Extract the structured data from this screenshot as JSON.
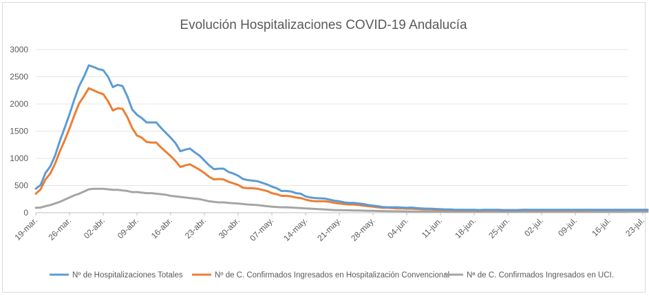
{
  "chart_data": {
    "type": "line",
    "title": "Evolución Hospitalizaciones COVID-19 Andalucía",
    "xlabel": "",
    "ylabel": "",
    "ylim": [
      0,
      3000
    ],
    "yticks": [
      0,
      500,
      1000,
      1500,
      2000,
      2500,
      3000
    ],
    "grid": "horizontal",
    "legend_position": "bottom",
    "x_start": "19-mar.",
    "x_tick_labels": [
      "19-mar.",
      "26-mar.",
      "02-abr.",
      "09-abr.",
      "16-abr.",
      "23-abr.",
      "30-abr.",
      "07-may.",
      "14-may.",
      "21-may.",
      "28-may.",
      "04-jun.",
      "11-jun.",
      "18-jun.",
      "25-jun.",
      "02-jul.",
      "09-jul.",
      "16-jul.",
      "23-jul."
    ],
    "series": [
      {
        "name": "Nº de Hospitalizaciones Totales",
        "color": "#5b9bd5",
        "values": [
          440,
          510,
          730,
          850,
          1050,
          1320,
          1560,
          1810,
          2080,
          2330,
          2500,
          2710,
          2680,
          2640,
          2620,
          2500,
          2310,
          2350,
          2330,
          2140,
          1900,
          1800,
          1740,
          1660,
          1660,
          1660,
          1560,
          1470,
          1380,
          1280,
          1130,
          1160,
          1180,
          1110,
          1050,
          960,
          870,
          800,
          810,
          810,
          750,
          720,
          680,
          620,
          600,
          590,
          580,
          550,
          520,
          480,
          450,
          400,
          400,
          390,
          360,
          350,
          300,
          280,
          270,
          265,
          260,
          240,
          220,
          210,
          190,
          180,
          180,
          170,
          160,
          140,
          130,
          120,
          105,
          100,
          100,
          100,
          95,
          90,
          95,
          85,
          80,
          75,
          75,
          70,
          65,
          60,
          60,
          55,
          55,
          55,
          55,
          55,
          50,
          55,
          55,
          55,
          55,
          50,
          50,
          50,
          50,
          55,
          55,
          55,
          55,
          55,
          55,
          55,
          55,
          55,
          55,
          55,
          55,
          55,
          55,
          55,
          55,
          55,
          55,
          55,
          55,
          55,
          55,
          55,
          55,
          55,
          55,
          55
        ]
      },
      {
        "name": "Nº de C. Confirmados Ingresados en Hospitalización Convencional",
        "color": "#ed7d31",
        "values": [
          350,
          430,
          610,
          720,
          900,
          1130,
          1330,
          1550,
          1790,
          2010,
          2140,
          2290,
          2250,
          2210,
          2180,
          2050,
          1880,
          1920,
          1910,
          1760,
          1560,
          1420,
          1380,
          1300,
          1290,
          1290,
          1200,
          1120,
          1040,
          950,
          840,
          870,
          890,
          840,
          790,
          730,
          660,
          610,
          620,
          610,
          570,
          540,
          510,
          460,
          450,
          450,
          440,
          420,
          400,
          360,
          340,
          310,
          310,
          300,
          280,
          270,
          240,
          220,
          210,
          210,
          210,
          200,
          180,
          170,
          160,
          150,
          150,
          140,
          130,
          120,
          110,
          100,
          90,
          90,
          85,
          80,
          80,
          75,
          75,
          70,
          65,
          60,
          60,
          55,
          55,
          50,
          50,
          45,
          45,
          45,
          45,
          45,
          40,
          45,
          45,
          45,
          45,
          40,
          40,
          40,
          40,
          45,
          50,
          45,
          45,
          45,
          45,
          45,
          45,
          50,
          45,
          45,
          45,
          45,
          45,
          50,
          50,
          50,
          50,
          50,
          50,
          50,
          50,
          50,
          50,
          50,
          50,
          50
        ]
      },
      {
        "name": "Nª de C. Confirmados Ingresados en UCI.",
        "color": "#a5a5a5",
        "values": [
          90,
          95,
          120,
          140,
          170,
          200,
          240,
          280,
          320,
          350,
          390,
          430,
          440,
          440,
          440,
          430,
          420,
          420,
          410,
          400,
          380,
          380,
          370,
          360,
          360,
          350,
          340,
          330,
          310,
          300,
          290,
          280,
          270,
          260,
          250,
          230,
          210,
          200,
          190,
          190,
          180,
          175,
          170,
          160,
          150,
          145,
          140,
          130,
          120,
          110,
          105,
          100,
          100,
          95,
          90,
          85,
          80,
          75,
          70,
          65,
          60,
          55,
          50,
          48,
          46,
          44,
          42,
          40,
          38,
          36,
          34,
          32,
          30,
          28,
          27,
          26,
          25,
          24,
          23,
          22,
          21,
          20,
          20,
          19,
          19,
          18,
          18,
          17,
          17,
          17,
          16,
          16,
          16,
          16,
          16,
          16,
          16,
          16,
          16,
          16,
          16,
          16,
          16,
          16,
          16,
          16,
          16,
          16,
          16,
          16,
          16,
          16,
          16,
          16,
          16,
          16,
          16,
          16,
          16,
          16,
          16,
          16,
          16,
          16,
          16,
          16,
          16,
          16
        ]
      }
    ]
  }
}
